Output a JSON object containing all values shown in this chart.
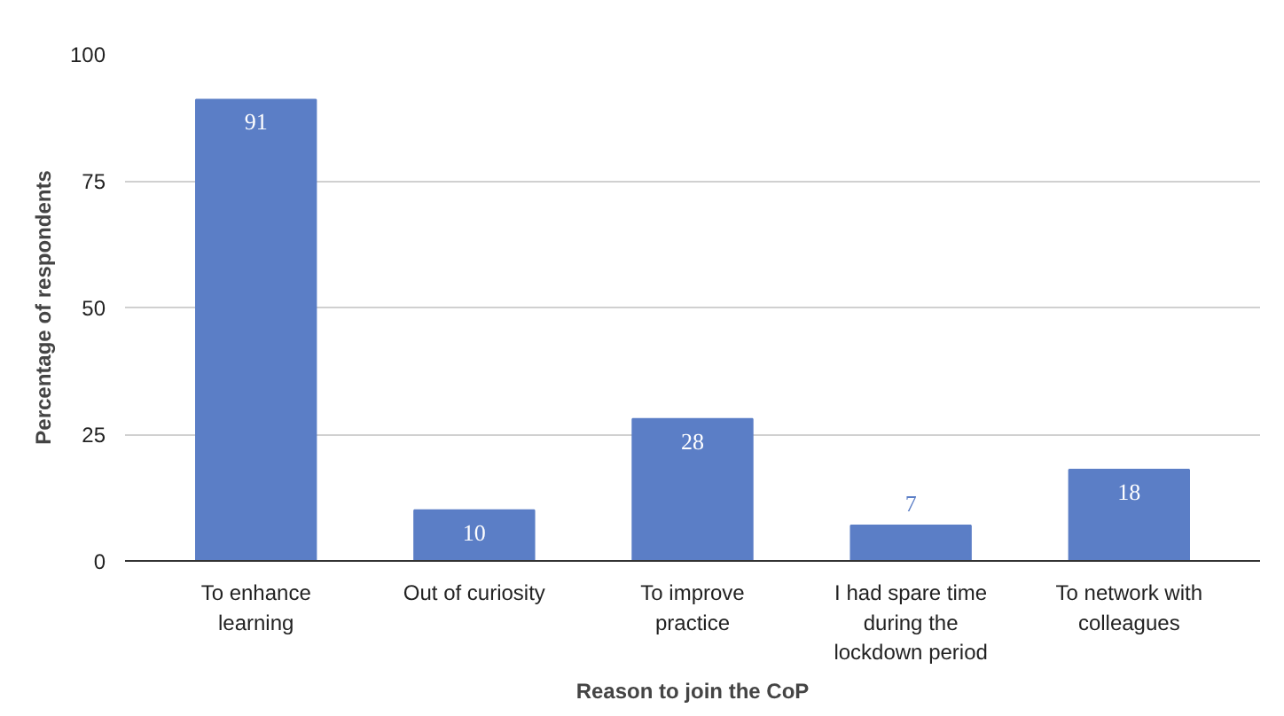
{
  "chart_data": {
    "type": "bar",
    "xlabel": "Reason to join the CoP",
    "ylabel": "Percentage of respondents",
    "categories": [
      "To enhance learning",
      "Out of curiosity",
      "To improve practice",
      "I had spare time during the lockdown period",
      "To network with colleagues"
    ],
    "values": [
      91,
      10,
      28,
      7,
      18
    ],
    "color": "#5b7ec6",
    "ylim": [
      0,
      100
    ],
    "yticks": [
      0,
      25,
      50,
      75,
      100
    ],
    "grid": "y",
    "data_labels": true
  }
}
